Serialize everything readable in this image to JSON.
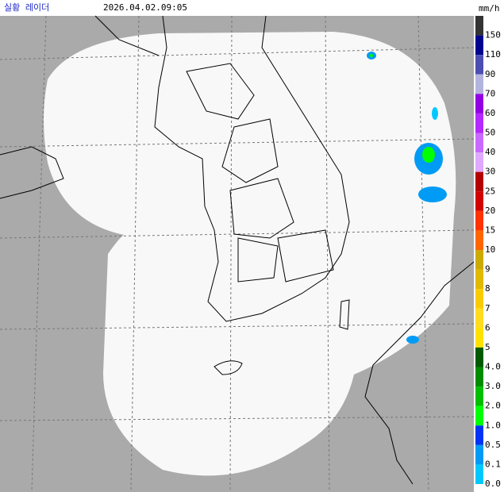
{
  "header": {
    "title": "실황 레이더",
    "timestamp": "2026.04.02.09:05",
    "unit": "mm/h"
  },
  "legend": [
    {
      "label": "150",
      "color": "#333333"
    },
    {
      "label": "110",
      "color": "#000390"
    },
    {
      "label": "90",
      "color": "#4c4eb1"
    },
    {
      "label": "70",
      "color": "#b3b4de"
    },
    {
      "label": "60",
      "color": "#9300e4"
    },
    {
      "label": "50",
      "color": "#b329ff"
    },
    {
      "label": "40",
      "color": "#c969ff"
    },
    {
      "label": "30",
      "color": "#dfa9ff"
    },
    {
      "label": "25",
      "color": "#b40000"
    },
    {
      "label": "20",
      "color": "#d20000"
    },
    {
      "label": "15",
      "color": "#ff3200"
    },
    {
      "label": "10",
      "color": "#ff6600"
    },
    {
      "label": "9",
      "color": "#ccaa00"
    },
    {
      "label": "8",
      "color": "#e0b900"
    },
    {
      "label": "7",
      "color": "#f9cb00"
    },
    {
      "label": "6",
      "color": "#ffdc1f"
    },
    {
      "label": "5",
      "color": "#ffe100"
    },
    {
      "label": "4.0",
      "color": "#005a00"
    },
    {
      "label": "3.0",
      "color": "#008c00"
    },
    {
      "label": "2.0",
      "color": "#00be00"
    },
    {
      "label": "1.0",
      "color": "#00ff00"
    },
    {
      "label": "0.5",
      "color": "#0033f5"
    },
    {
      "label": "0.1",
      "color": "#009bf5"
    },
    {
      "label": "0.0",
      "color": "#00c8ff"
    }
  ]
}
